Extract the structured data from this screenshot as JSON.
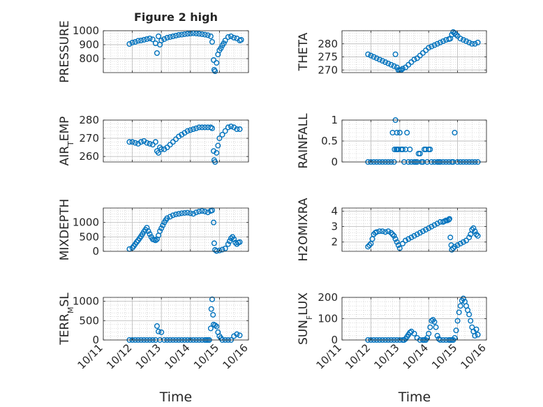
{
  "figure": {
    "title": "Figure 2 high",
    "xlabel": "Time"
  },
  "x_ticks": [
    "10/11",
    "10/12",
    "10/13",
    "10/14",
    "10/15",
    "10/16"
  ],
  "colors": {
    "marker": "#0072BD",
    "axis": "#262626",
    "grid": "#bfbfbf"
  },
  "chart_data": [
    {
      "type": "scatter",
      "ylabel": "PRESSURE",
      "ylim": [
        700,
        1000
      ],
      "yticks": [
        800,
        900,
        1000
      ],
      "grid": true,
      "x": [
        11.9,
        12.0,
        12.1,
        12.2,
        12.3,
        12.4,
        12.5,
        12.6,
        12.7,
        12.8,
        12.85,
        12.9,
        12.95,
        13.0,
        13.1,
        13.2,
        13.3,
        13.4,
        13.5,
        13.6,
        13.7,
        13.8,
        13.9,
        14.0,
        14.1,
        14.2,
        14.3,
        14.4,
        14.5,
        14.6,
        14.7,
        14.75,
        14.8,
        14.82,
        14.85,
        14.9,
        14.95,
        15.0,
        15.05,
        15.1,
        15.15,
        15.2,
        15.3,
        15.4,
        15.5,
        15.6,
        15.7,
        15.75
      ],
      "y": [
        905,
        915,
        920,
        928,
        930,
        935,
        940,
        945,
        938,
        910,
        840,
        960,
        900,
        930,
        940,
        950,
        955,
        960,
        965,
        970,
        972,
        975,
        978,
        980,
        982,
        980,
        978,
        975,
        972,
        968,
        960,
        920,
        790,
        720,
        710,
        770,
        830,
        860,
        875,
        895,
        910,
        930,
        955,
        960,
        950,
        945,
        930,
        935
      ]
    },
    {
      "type": "scatter",
      "ylabel": "THETA",
      "ylim": [
        269,
        285
      ],
      "yticks": [
        270,
        275,
        280
      ],
      "grid": true,
      "x": [
        11.9,
        12.0,
        12.1,
        12.2,
        12.3,
        12.4,
        12.5,
        12.6,
        12.7,
        12.8,
        12.85,
        12.9,
        12.95,
        13.0,
        13.05,
        13.1,
        13.2,
        13.3,
        13.4,
        13.5,
        13.6,
        13.7,
        13.8,
        13.9,
        14.0,
        14.1,
        14.2,
        14.3,
        14.4,
        14.5,
        14.6,
        14.7,
        14.75,
        14.8,
        14.85,
        14.9,
        14.95,
        15.0,
        15.1,
        15.2,
        15.3,
        15.4,
        15.5,
        15.6,
        15.7
      ],
      "y": [
        276,
        275.5,
        275,
        274.5,
        274,
        273.5,
        273,
        272.5,
        272,
        271.5,
        276,
        271,
        270,
        270,
        270,
        270.5,
        271,
        272,
        273,
        274,
        274.5,
        275.5,
        276.5,
        277.5,
        278.5,
        279,
        279.5,
        280,
        280.5,
        281,
        281.5,
        281.8,
        282,
        283.5,
        284.5,
        284,
        283.5,
        283,
        282,
        281.5,
        281,
        280.5,
        280,
        280,
        280.5
      ]
    },
    {
      "type": "scatter",
      "ylabel": "AIR_TEMP",
      "ylim": [
        257,
        280
      ],
      "yticks": [
        260,
        270,
        280
      ],
      "grid": true,
      "x": [
        11.9,
        12.0,
        12.1,
        12.2,
        12.3,
        12.4,
        12.5,
        12.6,
        12.7,
        12.8,
        12.85,
        12.9,
        12.95,
        13.0,
        13.1,
        13.2,
        13.3,
        13.4,
        13.5,
        13.6,
        13.7,
        13.8,
        13.9,
        14.0,
        14.1,
        14.2,
        14.3,
        14.4,
        14.5,
        14.6,
        14.7,
        14.75,
        14.8,
        14.82,
        14.85,
        14.9,
        14.95,
        15.0,
        15.1,
        15.2,
        15.3,
        15.4,
        15.5,
        15.6,
        15.7
      ],
      "y": [
        268,
        268,
        267.5,
        267,
        268,
        268.5,
        267.5,
        267,
        266.5,
        268,
        263,
        262,
        265,
        264,
        264,
        265,
        266.5,
        268,
        269.5,
        271,
        272,
        273,
        274,
        274.5,
        275,
        275.5,
        276,
        276,
        276,
        276,
        276,
        275.5,
        263,
        258,
        257,
        262,
        266,
        270,
        272,
        274,
        276,
        276.5,
        276,
        275,
        275
      ]
    },
    {
      "type": "scatter",
      "ylabel": "RAINFALL",
      "ylim": [
        0,
        1
      ],
      "yticks": [
        0,
        0.5,
        1
      ],
      "grid": true,
      "x": [
        11.9,
        12.0,
        12.1,
        12.2,
        12.3,
        12.4,
        12.5,
        12.6,
        12.7,
        12.75,
        12.8,
        12.82,
        12.85,
        12.88,
        12.9,
        12.92,
        12.95,
        13.0,
        13.05,
        13.1,
        13.15,
        13.2,
        13.25,
        13.3,
        13.35,
        13.4,
        13.5,
        13.55,
        13.6,
        13.65,
        13.7,
        13.75,
        13.8,
        13.85,
        13.9,
        13.95,
        14.0,
        14.05,
        14.1,
        14.2,
        14.3,
        14.35,
        14.4,
        14.5,
        14.6,
        14.7,
        14.8,
        14.85,
        14.9,
        15.0,
        15.1,
        15.2,
        15.3,
        15.4,
        15.5,
        15.6,
        15.7
      ],
      "y": [
        0,
        0,
        0,
        0,
        0,
        0,
        0,
        0,
        0,
        0.7,
        0,
        0.3,
        1,
        0.3,
        0.7,
        0.3,
        0.3,
        0.7,
        0.3,
        0.3,
        0,
        0.3,
        0.7,
        0,
        0.3,
        0,
        0,
        0,
        0,
        0.2,
        0.2,
        0,
        0,
        0.3,
        0.3,
        0,
        0.3,
        0.3,
        0,
        0,
        0,
        0,
        0,
        0,
        0,
        0,
        0,
        0,
        0.7,
        0,
        0,
        0,
        0,
        0,
        0,
        0,
        0
      ]
    },
    {
      "type": "scatter",
      "ylabel": "MIXDEPTH",
      "ylim": [
        0,
        1500
      ],
      "yticks": [
        0,
        500,
        1000
      ],
      "grid": true,
      "x": [
        11.9,
        12.0,
        12.05,
        12.1,
        12.15,
        12.2,
        12.25,
        12.3,
        12.35,
        12.4,
        12.45,
        12.5,
        12.55,
        12.6,
        12.65,
        12.7,
        12.75,
        12.8,
        12.85,
        12.9,
        12.95,
        13.0,
        13.05,
        13.1,
        13.15,
        13.2,
        13.3,
        13.4,
        13.5,
        13.6,
        13.7,
        13.8,
        13.9,
        14.0,
        14.1,
        14.2,
        14.3,
        14.4,
        14.5,
        14.6,
        14.7,
        14.75,
        14.8,
        14.82,
        14.85,
        14.9,
        15.0,
        15.1,
        15.2,
        15.3,
        15.35,
        15.4,
        15.45,
        15.5,
        15.55,
        15.6,
        15.65,
        15.7
      ],
      "y": [
        80,
        120,
        180,
        250,
        320,
        380,
        450,
        520,
        600,
        680,
        750,
        820,
        700,
        600,
        500,
        420,
        400,
        380,
        420,
        550,
        700,
        800,
        900,
        1000,
        1080,
        1150,
        1200,
        1250,
        1280,
        1300,
        1320,
        1330,
        1340,
        1320,
        1300,
        1350,
        1380,
        1400,
        1380,
        1350,
        1400,
        1420,
        1000,
        280,
        50,
        10,
        30,
        60,
        100,
        250,
        350,
        450,
        500,
        420,
        300,
        250,
        300,
        320
      ]
    },
    {
      "type": "scatter",
      "ylabel": "H2OMIXRA",
      "ylim": [
        1.4,
        4.2
      ],
      "yticks": [
        2,
        3,
        4
      ],
      "grid": true,
      "x": [
        11.9,
        11.95,
        12.0,
        12.05,
        12.1,
        12.15,
        12.2,
        12.3,
        12.4,
        12.5,
        12.6,
        12.7,
        12.75,
        12.8,
        12.85,
        12.9,
        12.95,
        13.0,
        13.1,
        13.2,
        13.3,
        13.4,
        13.5,
        13.6,
        13.7,
        13.8,
        13.9,
        14.0,
        14.1,
        14.2,
        14.3,
        14.4,
        14.5,
        14.55,
        14.6,
        14.65,
        14.7,
        14.72,
        14.75,
        14.78,
        14.8,
        14.85,
        14.9,
        15.0,
        15.1,
        15.2,
        15.3,
        15.4,
        15.45,
        15.5,
        15.55,
        15.6,
        15.65,
        15.7
      ],
      "y": [
        1.7,
        1.8,
        1.9,
        2.2,
        2.5,
        2.6,
        2.65,
        2.7,
        2.7,
        2.65,
        2.7,
        2.6,
        2.5,
        2.4,
        2.2,
        2.0,
        1.8,
        1.6,
        1.9,
        2.1,
        2.2,
        2.3,
        2.4,
        2.5,
        2.6,
        2.7,
        2.8,
        2.9,
        3.0,
        3.1,
        3.2,
        3.3,
        3.3,
        3.35,
        3.4,
        3.4,
        3.45,
        3.5,
        2.3,
        1.8,
        1.5,
        1.6,
        1.7,
        1.8,
        1.9,
        2.0,
        2.1,
        2.3,
        2.5,
        2.8,
        2.9,
        2.7,
        2.5,
        2.4
      ]
    },
    {
      "type": "scatter",
      "ylabel": "TERR_MSL",
      "ylim": [
        0,
        1100
      ],
      "yticks": [
        0,
        500,
        1000
      ],
      "grid": true,
      "x": [
        11.9,
        12.0,
        12.1,
        12.2,
        12.3,
        12.4,
        12.5,
        12.6,
        12.7,
        12.8,
        12.85,
        12.9,
        12.95,
        13.0,
        13.1,
        13.2,
        13.3,
        13.4,
        13.5,
        13.6,
        13.7,
        13.8,
        13.9,
        14.0,
        14.1,
        14.2,
        14.3,
        14.4,
        14.5,
        14.55,
        14.6,
        14.65,
        14.7,
        14.72,
        14.75,
        14.78,
        14.8,
        14.85,
        14.9,
        14.95,
        15.0,
        15.05,
        15.1,
        15.2,
        15.3,
        15.4,
        15.5,
        15.6,
        15.7
      ],
      "y": [
        0,
        0,
        0,
        0,
        0,
        0,
        0,
        0,
        0,
        0,
        360,
        220,
        0,
        200,
        0,
        0,
        0,
        0,
        0,
        0,
        0,
        0,
        0,
        0,
        0,
        0,
        0,
        0,
        0,
        0,
        0,
        0,
        300,
        800,
        1050,
        650,
        400,
        380,
        350,
        200,
        100,
        50,
        0,
        0,
        0,
        0,
        100,
        150,
        120
      ]
    },
    {
      "type": "scatter",
      "ylabel": "SUN_FLUX",
      "ylim": [
        0,
        200
      ],
      "yticks": [
        0,
        100,
        200
      ],
      "grid": true,
      "x": [
        11.9,
        12.0,
        12.1,
        12.2,
        12.3,
        12.4,
        12.5,
        12.6,
        12.7,
        12.8,
        12.9,
        13.0,
        13.1,
        13.15,
        13.2,
        13.25,
        13.3,
        13.35,
        13.4,
        13.5,
        13.6,
        13.7,
        13.8,
        13.85,
        13.9,
        13.95,
        14.0,
        14.05,
        14.1,
        14.15,
        14.2,
        14.25,
        14.3,
        14.35,
        14.4,
        14.5,
        14.6,
        14.7,
        14.75,
        14.8,
        14.85,
        14.9,
        14.95,
        15.0,
        15.05,
        15.1,
        15.15,
        15.2,
        15.25,
        15.3,
        15.35,
        15.4,
        15.45,
        15.5,
        15.55,
        15.6,
        15.65,
        15.7
      ],
      "y": [
        0,
        0,
        0,
        0,
        0,
        0,
        0,
        0,
        0,
        0,
        0,
        0,
        0,
        0,
        5,
        15,
        25,
        35,
        40,
        30,
        10,
        0,
        0,
        0,
        0,
        10,
        30,
        60,
        90,
        95,
        85,
        60,
        20,
        5,
        0,
        0,
        0,
        0,
        0,
        0,
        0,
        10,
        45,
        90,
        130,
        160,
        185,
        195,
        180,
        160,
        140,
        120,
        90,
        60,
        40,
        20,
        50,
        25
      ]
    }
  ]
}
